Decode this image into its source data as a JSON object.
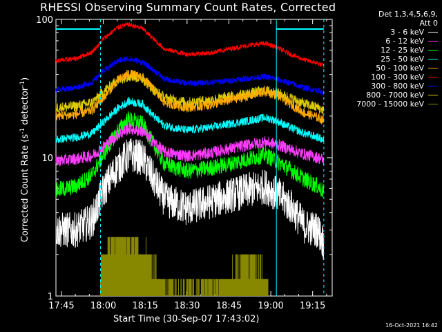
{
  "chart_data": {
    "type": "line",
    "title": "RHESSI Observing Summary Count Rates, Corrected",
    "xlabel": "Start Time (30-Sep-07 17:43:02)",
    "ylabel_main": "Corrected Count Rate (s",
    "ylabel_sup1": "-1",
    "ylabel_mid": " detector",
    "ylabel_sup2": "-1",
    "ylabel_end": ")",
    "y_scale": "log",
    "ylim": [
      1,
      100
    ],
    "xlim": [
      "17:43:02",
      "19:22:00"
    ],
    "x_ticks": [
      "17:45",
      "18:00",
      "18:15",
      "18:30",
      "18:45",
      "19:00",
      "19:15"
    ],
    "y_ticks": [
      "1",
      "10",
      "100"
    ],
    "legend_header": [
      "Det 1,3,4,5,6,9,",
      "Att 0"
    ],
    "legend_position": "right",
    "timestamp": "16-Oct-2021 16:42",
    "series": [
      {
        "name": "3 - 6 keV",
        "color": "#ffffff",
        "x": [
          "17:43",
          "17:50",
          "17:56",
          "18:00",
          "18:05",
          "18:09",
          "18:14",
          "18:18",
          "18:22",
          "18:30",
          "18:38",
          "18:45",
          "18:52",
          "18:58",
          "19:02",
          "19:07",
          "19:12",
          "19:17",
          "19:19"
        ],
        "y": [
          3.0,
          3.0,
          3.5,
          5.8,
          8.5,
          10.5,
          10.0,
          7.0,
          5.0,
          4.3,
          4.8,
          5.3,
          5.8,
          6.2,
          5.5,
          4.5,
          3.2,
          3.0,
          2.4
        ]
      },
      {
        "name": "6 - 12 keV",
        "color": "#ff3cff",
        "x": [
          "17:43",
          "17:50",
          "17:56",
          "18:00",
          "18:05",
          "18:09",
          "18:14",
          "18:18",
          "18:22",
          "18:30",
          "18:38",
          "18:45",
          "18:52",
          "18:58",
          "19:02",
          "19:07",
          "19:12",
          "19:17",
          "19:19"
        ],
        "y": [
          9.5,
          9.8,
          10.3,
          12.0,
          14.5,
          16.2,
          15.5,
          13.0,
          11.0,
          10.3,
          10.8,
          11.6,
          12.4,
          13.0,
          12.5,
          11.5,
          10.6,
          10.0,
          9.6
        ]
      },
      {
        "name": "12 - 25 keV",
        "color": "#00ff00",
        "x": [
          "17:43",
          "17:50",
          "17:56",
          "18:00",
          "18:05",
          "18:09",
          "18:14",
          "18:18",
          "18:22",
          "18:30",
          "18:38",
          "18:45",
          "18:52",
          "18:58",
          "19:02",
          "19:07",
          "19:12",
          "19:17",
          "19:19"
        ],
        "y": [
          5.8,
          6.2,
          7.5,
          10.5,
          15.5,
          19.0,
          17.5,
          12.5,
          9.0,
          8.0,
          8.4,
          9.0,
          9.8,
          10.5,
          9.5,
          8.2,
          7.0,
          6.2,
          5.6
        ]
      },
      {
        "name": "25 - 50 keV",
        "color": "#00ffff",
        "x": [
          "17:43",
          "17:50",
          "17:56",
          "18:00",
          "18:05",
          "18:09",
          "18:14",
          "18:18",
          "18:22",
          "18:30",
          "18:38",
          "18:45",
          "18:52",
          "18:58",
          "19:02",
          "19:07",
          "19:12",
          "19:17",
          "19:19"
        ],
        "y": [
          13.5,
          14.0,
          15.0,
          18.0,
          22.5,
          25.5,
          24.5,
          20.0,
          17.0,
          15.8,
          16.5,
          17.5,
          18.5,
          19.5,
          18.5,
          16.5,
          15.0,
          14.0,
          13.3
        ]
      },
      {
        "name": "50 - 100 keV",
        "color": "#ffaa00",
        "x": [
          "17:43",
          "17:50",
          "17:56",
          "18:00",
          "18:05",
          "18:09",
          "18:14",
          "18:18",
          "18:22",
          "18:30",
          "18:38",
          "18:45",
          "18:52",
          "18:58",
          "19:02",
          "19:07",
          "19:12",
          "19:17",
          "19:19"
        ],
        "y": [
          20.0,
          20.5,
          22.0,
          27.0,
          36.0,
          40.5,
          38.5,
          31.0,
          25.0,
          23.0,
          24.0,
          26.0,
          28.0,
          30.0,
          28.5,
          24.5,
          21.0,
          19.5,
          18.5
        ]
      },
      {
        "name": "100 - 300 keV",
        "color": "#ff0000",
        "x": [
          "17:43",
          "17:50",
          "17:56",
          "18:00",
          "18:05",
          "18:09",
          "18:14",
          "18:18",
          "18:22",
          "18:30",
          "18:38",
          "18:45",
          "18:52",
          "18:58",
          "19:02",
          "19:07",
          "19:12",
          "19:17",
          "19:19"
        ],
        "y": [
          50.0,
          52.0,
          58.0,
          72.0,
          87.0,
          92.0,
          86.0,
          72.0,
          61.0,
          56.0,
          57.0,
          61.0,
          65.0,
          67.0,
          63.0,
          56.0,
          51.0,
          48.0,
          46.0
        ]
      },
      {
        "name": "300 - 800 keV",
        "color": "#0000ff",
        "x": [
          "17:43",
          "17:50",
          "17:56",
          "18:00",
          "18:05",
          "18:09",
          "18:14",
          "18:18",
          "18:22",
          "18:30",
          "18:38",
          "18:45",
          "18:52",
          "18:58",
          "19:02",
          "19:07",
          "19:12",
          "19:17",
          "19:19"
        ],
        "y": [
          31.0,
          32.0,
          35.0,
          42.0,
          50.0,
          52.0,
          49.0,
          43.0,
          37.0,
          34.5,
          35.0,
          36.0,
          37.5,
          38.5,
          37.0,
          34.5,
          32.0,
          30.5,
          29.5
        ]
      },
      {
        "name": "800 - 7000 keV",
        "color": "#ddcc00",
        "x": [
          "17:43",
          "17:50",
          "17:56",
          "18:00",
          "18:05",
          "18:09",
          "18:14",
          "18:18",
          "18:22",
          "18:30",
          "18:38",
          "18:45",
          "18:52",
          "18:58",
          "19:02",
          "19:07",
          "19:12",
          "19:17",
          "19:19"
        ],
        "y": [
          23.0,
          23.5,
          25.0,
          30.0,
          36.0,
          39.0,
          37.5,
          31.0,
          27.0,
          25.0,
          26.0,
          27.5,
          29.0,
          30.5,
          29.5,
          27.0,
          24.5,
          23.0,
          22.0
        ]
      },
      {
        "name": "7000 - 15000 keV",
        "color": "#888800",
        "x": [
          "17:59",
          "18:02",
          "18:05",
          "18:08",
          "18:11",
          "18:14",
          "18:17",
          "18:20",
          "18:23",
          "18:26",
          "18:44",
          "18:48",
          "18:52",
          "18:56",
          "18:59"
        ],
        "y": [
          1.5,
          2.4,
          2.8,
          2.6,
          2.5,
          2.0,
          1.6,
          1.4,
          1.2,
          1.1,
          1.3,
          1.6,
          1.8,
          1.6,
          1.3
        ]
      }
    ],
    "attenuator_state": {
      "color": "#00ffff",
      "segments": [
        [
          "17:43",
          "17:59"
        ],
        [
          "19:02",
          "19:19"
        ]
      ]
    },
    "dashed_markers": {
      "color": "#00ffff",
      "x": [
        "17:59",
        "19:19"
      ]
    },
    "solid_markers": {
      "color": "#00ffff",
      "x": [
        "19:02"
      ]
    }
  }
}
